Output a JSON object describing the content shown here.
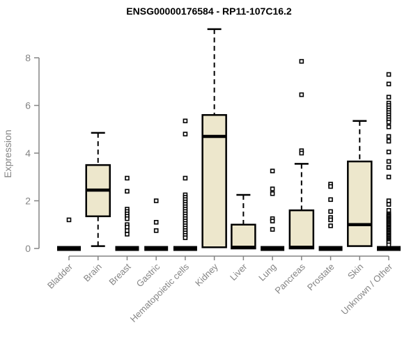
{
  "title": "ENSG00000176584 - RP11-107C16.2",
  "chart_data": {
    "type": "boxplot",
    "title": "ENSG00000176584 - RP11-107C16.2",
    "xlabel": "",
    "ylabel": "Expression",
    "ylim": [
      0,
      9.3
    ],
    "yticks": [
      0,
      2,
      4,
      6,
      8
    ],
    "grid": false,
    "legend": "none",
    "categories": [
      "Bladder",
      "Brain",
      "Breast",
      "Gastric",
      "Hematopoietic cells",
      "Kidney",
      "Liver",
      "Lung",
      "Pancreas",
      "Prostate",
      "Skin",
      "Unknown / Other"
    ],
    "series": [
      {
        "label": "Bladder",
        "collapsed": true,
        "q1": 0,
        "median": 0,
        "q3": 0,
        "whisker_low": 0,
        "whisker_high": 0,
        "outliers": [
          1.2
        ]
      },
      {
        "label": "Brain",
        "collapsed": false,
        "q1": 1.35,
        "median": 2.45,
        "q3": 3.5,
        "whisker_low": 0.1,
        "whisker_high": 4.85,
        "outliers": []
      },
      {
        "label": "Breast",
        "collapsed": true,
        "q1": 0,
        "median": 0,
        "q3": 0,
        "whisker_low": 0,
        "whisker_high": 0,
        "outliers": [
          2.95,
          2.4,
          1.65,
          1.55,
          1.45,
          1.35,
          1.25,
          1.0,
          0.9,
          0.75,
          0.6
        ]
      },
      {
        "label": "Gastric",
        "collapsed": true,
        "q1": 0,
        "median": 0,
        "q3": 0,
        "whisker_low": 0,
        "whisker_high": 0,
        "outliers": [
          2.0,
          1.1,
          0.75
        ]
      },
      {
        "label": "Hematopoietic cells",
        "collapsed": true,
        "q1": 0,
        "median": 0,
        "q3": 0,
        "whisker_low": 0,
        "whisker_high": 0,
        "outliers": [
          5.35,
          4.8,
          2.95,
          2.25,
          2.15,
          2.05,
          1.95,
          1.85,
          1.75,
          1.65,
          1.55,
          1.45,
          1.35,
          1.25,
          1.15,
          1.05,
          0.95,
          0.85,
          0.75,
          0.65,
          0.55,
          0.45
        ]
      },
      {
        "label": "Kidney",
        "collapsed": false,
        "q1": 0.05,
        "median": 4.7,
        "q3": 5.6,
        "whisker_low": 0,
        "whisker_high": 9.2,
        "outliers": []
      },
      {
        "label": "Liver",
        "collapsed": false,
        "q1": 0,
        "median": 0.05,
        "q3": 1.0,
        "whisker_low": 0,
        "whisker_high": 2.25,
        "outliers": []
      },
      {
        "label": "Lung",
        "collapsed": true,
        "q1": 0,
        "median": 0,
        "q3": 0,
        "whisker_low": 0,
        "whisker_high": 0,
        "outliers": [
          3.25,
          2.5,
          2.3,
          1.25,
          1.15,
          0.8
        ]
      },
      {
        "label": "Pancreas",
        "collapsed": false,
        "q1": 0,
        "median": 0.05,
        "q3": 1.6,
        "whisker_low": 0,
        "whisker_high": 3.55,
        "outliers": [
          7.85,
          6.45,
          4.1,
          4.0
        ]
      },
      {
        "label": "Prostate",
        "collapsed": true,
        "q1": 0,
        "median": 0,
        "q3": 0,
        "whisker_low": 0,
        "whisker_high": 0,
        "outliers": [
          2.7,
          2.6,
          2.05,
          1.55,
          1.3,
          1.2,
          0.95
        ]
      },
      {
        "label": "Skin",
        "collapsed": false,
        "q1": 0.1,
        "median": 1.0,
        "q3": 3.65,
        "whisker_low": 0,
        "whisker_high": 5.35,
        "outliers": []
      },
      {
        "label": "Unknown / Other",
        "collapsed": true,
        "q1": 0,
        "median": 0,
        "q3": 0,
        "whisker_low": 0,
        "whisker_high": 0,
        "outliers": [
          7.3,
          6.9,
          6.35,
          6.1,
          6.0,
          5.9,
          5.8,
          5.7,
          5.6,
          5.5,
          5.4,
          5.3,
          5.1,
          4.7,
          4.5,
          4.05,
          3.65,
          3.4,
          3.0,
          2.0,
          1.85,
          1.6,
          1.45,
          1.4,
          1.35,
          1.3,
          1.25,
          1.2,
          1.15,
          1.1,
          1.05,
          1.0,
          0.95,
          0.9,
          0.85,
          0.8,
          0.75,
          0.7,
          0.65,
          0.6,
          0.55,
          0.5,
          0.45,
          0.4,
          0.35,
          0.3,
          0.25,
          0.15
        ]
      }
    ],
    "colors": {
      "box_fill": "#ede7cc",
      "box_stroke": "#000000",
      "median": "#000000",
      "outlier_fill": "#ffffff",
      "outlier_stroke": "#000000",
      "axis": "#848484",
      "tick_label": "#848484",
      "title": "#000000",
      "background": "#ffffff"
    }
  }
}
